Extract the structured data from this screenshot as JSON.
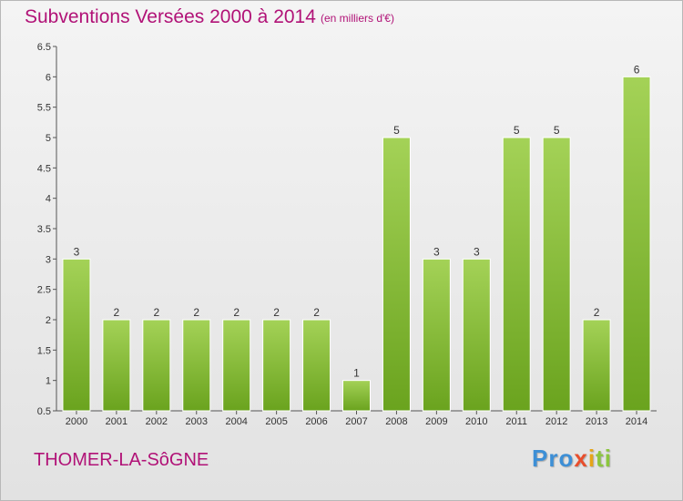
{
  "header": {
    "title": "Subventions Versées 2000 à 2014",
    "units": "(en milliers d'€)"
  },
  "footer": {
    "commune": "THOMER-LA-SôGNE",
    "brand": [
      "Pro",
      "x",
      "i",
      "ti"
    ]
  },
  "colors": {
    "bar_light": "#a4d257",
    "bar_dark": "#6aa31e",
    "title": "#b11277"
  },
  "chart_data": {
    "type": "bar",
    "title": "Subventions Versées 2000 à 2014",
    "subtitle": "(en milliers d'€)",
    "xlabel": "",
    "ylabel": "",
    "categories": [
      "2000",
      "2001",
      "2002",
      "2003",
      "2004",
      "2005",
      "2006",
      "2007",
      "2008",
      "2009",
      "2010",
      "2011",
      "2012",
      "2013",
      "2014"
    ],
    "values": [
      3,
      2,
      2,
      2,
      2,
      2,
      2,
      1,
      5,
      3,
      3,
      5,
      5,
      2,
      6
    ],
    "ylim": [
      0.5,
      6.5
    ],
    "yticks": [
      "0.5",
      "1",
      "1.5",
      "2",
      "2.5",
      "3",
      "3.5",
      "4",
      "4.5",
      "5",
      "5.5",
      "6",
      "6.5"
    ],
    "grid": false,
    "legend": "none"
  }
}
